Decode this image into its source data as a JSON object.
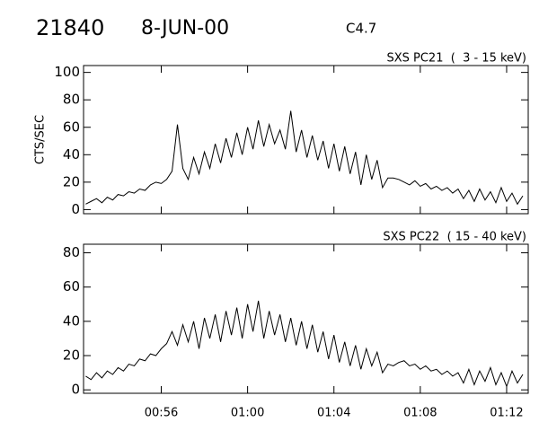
{
  "header": {
    "number": "21840",
    "date": "8-JUN-00",
    "class": "C4.7"
  },
  "chart_data": [
    {
      "type": "line",
      "title": "SXS PC21  (  3 - 15 keV)",
      "ylabel": "CTS/SEC",
      "xlim": [
        52.4,
        73.0
      ],
      "xticks": [
        56,
        60,
        64,
        68,
        72
      ],
      "ylim": [
        -3,
        105
      ],
      "yticks": [
        0,
        20,
        40,
        60,
        80,
        100
      ],
      "x": [
        52.5,
        52.75,
        53,
        53.25,
        53.5,
        53.75,
        54,
        54.25,
        54.5,
        54.75,
        55,
        55.25,
        55.5,
        55.75,
        56,
        56.25,
        56.5,
        56.75,
        57,
        57.25,
        57.5,
        57.75,
        58,
        58.25,
        58.5,
        58.75,
        59,
        59.25,
        59.5,
        59.75,
        60,
        60.25,
        60.5,
        60.75,
        61,
        61.25,
        61.5,
        61.75,
        62,
        62.25,
        62.5,
        62.75,
        63,
        63.25,
        63.5,
        63.75,
        64,
        64.25,
        64.5,
        64.75,
        65,
        65.25,
        65.5,
        65.75,
        66,
        66.25,
        66.5,
        66.75,
        67,
        67.25,
        67.5,
        67.75,
        68,
        68.25,
        68.5,
        68.75,
        69,
        69.25,
        69.5,
        69.75,
        70,
        70.25,
        70.5,
        70.75,
        71,
        71.25,
        71.5,
        71.75,
        72,
        72.25,
        72.5,
        72.75
      ],
      "series": [
        {
          "color": "#000000",
          "values": [
            4,
            6,
            8,
            5,
            9,
            7,
            11,
            10,
            13,
            12,
            15,
            14,
            18,
            20,
            19,
            22,
            28,
            62,
            30,
            22,
            38,
            26,
            42,
            30,
            48,
            34,
            52,
            38,
            56,
            40,
            60,
            44,
            65,
            46,
            62,
            48,
            58,
            44,
            72,
            42,
            58,
            38,
            54,
            36,
            50,
            30,
            48,
            28,
            46,
            26,
            42,
            18,
            40,
            22,
            36,
            16,
            23,
            23,
            22,
            20,
            18,
            21,
            17,
            19,
            15,
            17,
            14,
            16,
            12,
            15,
            8,
            14,
            6,
            15,
            7,
            13,
            5,
            16,
            6,
            12,
            4,
            10
          ]
        }
      ]
    },
    {
      "type": "line",
      "title": "SXS PC22  ( 15 - 40 keV)",
      "xlim": [
        52.4,
        73.0
      ],
      "xticks": [
        {
          "value": 56,
          "label": "00:56"
        },
        {
          "value": 60,
          "label": "01:00"
        },
        {
          "value": 64,
          "label": "01:04"
        },
        {
          "value": 68,
          "label": "01:08"
        },
        {
          "value": 72,
          "label": "01:12"
        }
      ],
      "ylim": [
        -2,
        85
      ],
      "yticks": [
        0,
        20,
        40,
        60,
        80
      ],
      "x": [
        52.5,
        52.75,
        53,
        53.25,
        53.5,
        53.75,
        54,
        54.25,
        54.5,
        54.75,
        55,
        55.25,
        55.5,
        55.75,
        56,
        56.25,
        56.5,
        56.75,
        57,
        57.25,
        57.5,
        57.75,
        58,
        58.25,
        58.5,
        58.75,
        59,
        59.25,
        59.5,
        59.75,
        60,
        60.25,
        60.5,
        60.75,
        61,
        61.25,
        61.5,
        61.75,
        62,
        62.25,
        62.5,
        62.75,
        63,
        63.25,
        63.5,
        63.75,
        64,
        64.25,
        64.5,
        64.75,
        65,
        65.25,
        65.5,
        65.75,
        66,
        66.25,
        66.5,
        66.75,
        67,
        67.25,
        67.5,
        67.75,
        68,
        68.25,
        68.5,
        68.75,
        69,
        69.25,
        69.5,
        69.75,
        70,
        70.25,
        70.5,
        70.75,
        71,
        71.25,
        71.5,
        71.75,
        72,
        72.25,
        72.5,
        72.75
      ],
      "series": [
        {
          "color": "#000000",
          "values": [
            8,
            6,
            10,
            7,
            11,
            9,
            13,
            11,
            15,
            14,
            18,
            17,
            21,
            20,
            24,
            27,
            34,
            26,
            38,
            28,
            40,
            24,
            42,
            30,
            44,
            28,
            46,
            32,
            48,
            30,
            50,
            34,
            52,
            30,
            46,
            32,
            44,
            28,
            42,
            26,
            40,
            24,
            38,
            22,
            34,
            18,
            32,
            16,
            28,
            14,
            26,
            12,
            24,
            14,
            22,
            10,
            15,
            14,
            16,
            17,
            14,
            15,
            12,
            14,
            11,
            12,
            9,
            11,
            8,
            10,
            4,
            12,
            3,
            11,
            5,
            13,
            3,
            10,
            2,
            11,
            4,
            9
          ]
        }
      ]
    }
  ]
}
